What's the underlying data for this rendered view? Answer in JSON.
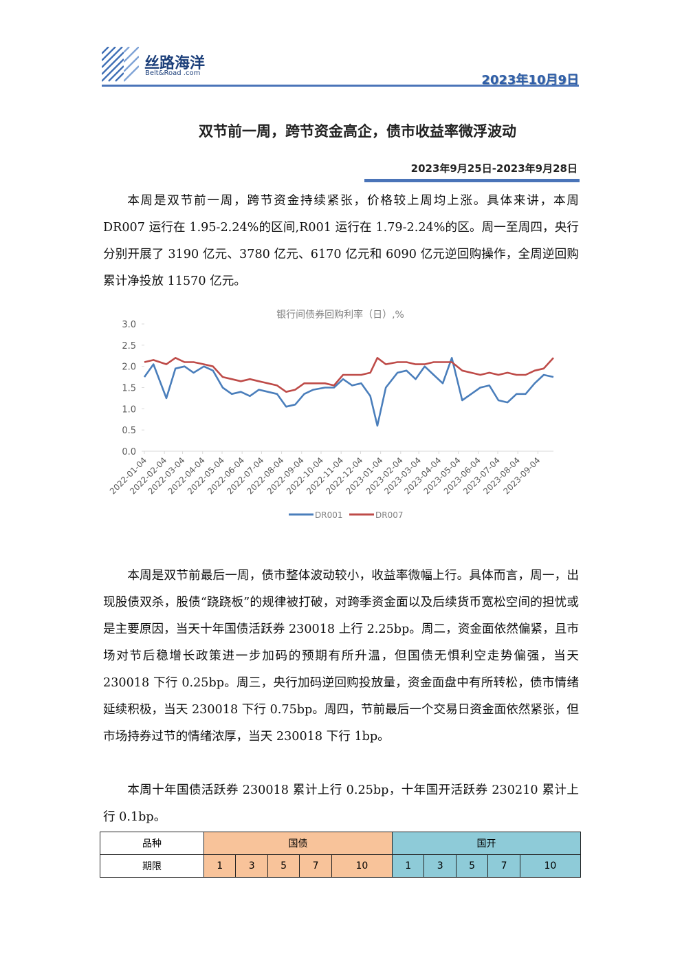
{
  "header": {
    "logo_cn": "丝路海洋",
    "logo_en": "Belt&Road .com",
    "date": "2023年10月9日"
  },
  "title": "双节前一周，跨节资金高企，债市收益率微浮波动",
  "period": "2023年9月25日-2023年9月28日",
  "paragraphs": [
    "本周是双节前一周，跨节资金持续紧张，价格较上周均上涨。具体来讲，本周 DR007 运行在 1.95-2.24%的区间,R001 运行在 1.79-2.24%的区。周一至周四，央行分别开展了 3190 亿元、3780 亿元、6170 亿元和 6090 亿元逆回购操作，全周逆回购累计净投放 11570 亿元。",
    "本周是双节前最后一周，债市整体波动较小，收益率微幅上行。具体而言，周一，出现股债双杀，股债“跷跷板”的规律被打破，对跨季资金面以及后续货币宽松空间的担忧或是主要原因，当天十年国债活跃券 230018 上行 2.25bp。周二，资金面依然偏紧，且市场对节后稳增长政策进一步加码的预期有所升温，但国债无惧利空走势偏强，当天 230018 下行 0.25bp。周三，央行加码逆回购投放量，资金面盘中有所转松，债市情绪延续积极，当天 230018 下行 0.75bp。周四，节前最后一个交易日资金面依然紧张，但市场持券过节的情绪浓厚，当天 230018 下行 1bp。",
    "本周十年国债活跃券 230018 累计上行 0.25bp，十年国开活跃券 230210 累计上行 0.1bp。"
  ],
  "chart_data": {
    "type": "line",
    "title": "银行间债券回购利率（日）,%",
    "x": [
      "2022-01-04",
      "2022-01-18",
      "2022-02-07",
      "2022-02-21",
      "2022-03-07",
      "2022-03-21",
      "2022-04-06",
      "2022-04-20",
      "2022-05-05",
      "2022-05-19",
      "2022-06-02",
      "2022-06-16",
      "2022-06-30",
      "2022-07-14",
      "2022-07-28",
      "2022-08-11",
      "2022-08-25",
      "2022-09-08",
      "2022-09-22",
      "2022-10-10",
      "2022-10-24",
      "2022-11-07",
      "2022-11-21",
      "2022-12-05",
      "2022-12-19",
      "2022-12-30",
      "2023-01-12",
      "2023-01-30",
      "2023-02-13",
      "2023-02-27",
      "2023-03-13",
      "2023-03-27",
      "2023-04-10",
      "2023-04-24",
      "2023-05-10",
      "2023-05-24",
      "2023-06-07",
      "2023-06-21",
      "2023-07-05",
      "2023-07-19",
      "2023-08-02",
      "2023-08-16",
      "2023-08-30",
      "2023-09-13",
      "2023-09-28"
    ],
    "series": [
      {
        "name": "DR001",
        "color": "#4a7ebb",
        "values": [
          1.75,
          2.05,
          1.25,
          1.95,
          2.0,
          1.85,
          2.0,
          1.9,
          1.5,
          1.35,
          1.4,
          1.3,
          1.45,
          1.4,
          1.35,
          1.05,
          1.1,
          1.35,
          1.45,
          1.5,
          1.5,
          1.7,
          1.55,
          1.6,
          1.3,
          0.6,
          1.5,
          1.85,
          1.9,
          1.7,
          2.0,
          1.8,
          1.6,
          2.2,
          1.2,
          1.35,
          1.5,
          1.55,
          1.2,
          1.15,
          1.35,
          1.35,
          1.6,
          1.8,
          1.75
        ]
      },
      {
        "name": "DR007",
        "color": "#be4b48",
        "values": [
          2.1,
          2.15,
          2.05,
          2.2,
          2.1,
          2.1,
          2.05,
          2.0,
          1.75,
          1.7,
          1.65,
          1.7,
          1.65,
          1.6,
          1.55,
          1.4,
          1.45,
          1.6,
          1.6,
          1.6,
          1.55,
          1.8,
          1.8,
          1.8,
          1.85,
          2.2,
          2.05,
          2.1,
          2.1,
          2.05,
          2.05,
          2.1,
          2.1,
          2.1,
          1.9,
          1.85,
          1.8,
          1.85,
          1.8,
          1.85,
          1.8,
          1.8,
          1.9,
          1.95,
          2.2
        ]
      }
    ],
    "xlim": [
      "2022-01-04",
      "2023-09-28"
    ],
    "xticks": [
      "2022-01-04",
      "2022-02-04",
      "2022-03-04",
      "2022-04-04",
      "2022-05-04",
      "2022-06-04",
      "2022-07-04",
      "2022-08-04",
      "2022-09-04",
      "2022-10-04",
      "2022-11-04",
      "2022-12-04",
      "2023-01-04",
      "2023-02-04",
      "2023-03-04",
      "2023-04-04",
      "2023-05-04",
      "2023-06-04",
      "2023-07-04",
      "2023-08-04",
      "2023-09-04"
    ],
    "ylim": [
      0,
      3
    ],
    "yticks": [
      {
        "value": 0,
        "label": "0.0"
      },
      {
        "value": 0.5,
        "label": "0.5"
      },
      {
        "value": 1,
        "label": "1.0"
      },
      {
        "value": 1.5,
        "label": "1.5"
      },
      {
        "value": 2,
        "label": "2.0"
      },
      {
        "value": 2.5,
        "label": "2.5"
      },
      {
        "value": 3,
        "label": "3.0"
      }
    ],
    "legend": "bottom"
  },
  "table": {
    "rows": [
      [
        "品种",
        "国债",
        "国开"
      ],
      [
        "期限",
        "1",
        "3",
        "5",
        "7",
        "10",
        "1",
        "3",
        "5",
        "7",
        "10"
      ]
    ]
  }
}
